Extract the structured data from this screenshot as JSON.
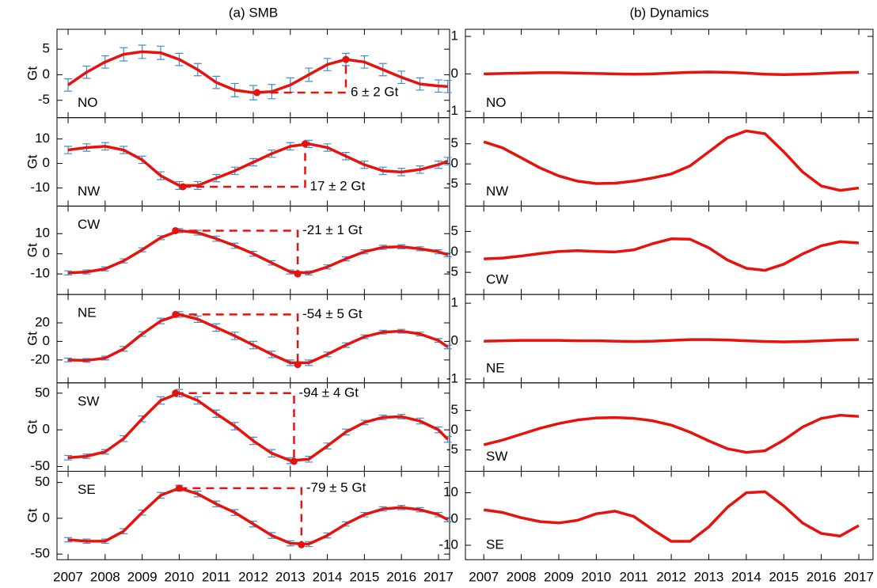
{
  "chart_data": [
    {
      "type": "line",
      "title": "(a) SMB",
      "ylabel": "Gt",
      "label": "NO",
      "label_corner": "lower left",
      "color": "#e8120c",
      "error_color": "#3b8fd1",
      "x": [
        2007,
        2007.5,
        2008,
        2008.5,
        2009,
        2009.5,
        2010,
        2010.5,
        2011,
        2011.5,
        2012,
        2012.5,
        2013,
        2013.5,
        2014,
        2014.5,
        2015,
        2015.5,
        2016,
        2016.5,
        2017,
        2017.25
      ],
      "values": [
        -2,
        0.5,
        2.5,
        4,
        4.5,
        4.3,
        3,
        1,
        -1.5,
        -3,
        -3.5,
        -3.3,
        -2,
        0,
        2,
        3,
        2.5,
        1,
        -0.5,
        -1.8,
        -2.2,
        -2.3
      ],
      "errors": [
        1.2,
        1.2,
        1.2,
        1.3,
        1.3,
        1.3,
        1.2,
        1.2,
        1.2,
        1.3,
        1.4,
        1.4,
        1.4,
        1.3,
        1.2,
        1.2,
        1.2,
        1.2,
        1.2,
        1.2,
        1.2,
        1.2
      ],
      "annotation": {
        "text": "6 ± 2 Gt",
        "x": [
          2012.1,
          2014.5
        ],
        "y": [
          -3.5,
          3
        ]
      },
      "xlim": [
        2006.7,
        2017.3
      ],
      "xticks": [
        2007,
        2008,
        2009,
        2010,
        2011,
        2012,
        2013,
        2014,
        2015,
        2016,
        2017
      ],
      "show_xtick_labels": false,
      "ylim": [
        -8.4,
        8.9
      ],
      "yticks": [
        -5,
        0,
        5
      ]
    },
    {
      "type": "line",
      "ylabel": "Gt",
      "label": "NW",
      "label_corner": "lower left",
      "color": "#e8120c",
      "error_color": "#3b8fd1",
      "x": [
        2007,
        2007.5,
        2008,
        2008.5,
        2009,
        2009.5,
        2010,
        2010.5,
        2011,
        2011.5,
        2012,
        2012.5,
        2013,
        2013.5,
        2014,
        2014.5,
        2015,
        2015.5,
        2016,
        2016.5,
        2017,
        2017.25
      ],
      "values": [
        5.5,
        6.5,
        7,
        5.5,
        1.5,
        -5,
        -9,
        -9,
        -6,
        -3,
        0.5,
        4,
        7,
        8,
        6.5,
        3,
        -0.5,
        -3,
        -3.5,
        -2.5,
        -0.5,
        1
      ],
      "errors": [
        1.5,
        1.5,
        1.5,
        1.5,
        1.5,
        1.6,
        1.6,
        1.6,
        1.5,
        1.5,
        1.5,
        1.5,
        1.5,
        1.5,
        1.5,
        1.5,
        1.5,
        1.5,
        1.5,
        1.5,
        1.5,
        1.5
      ],
      "annotation": {
        "text": "17 ± 2 Gt",
        "x": [
          2010.1,
          2013.4
        ],
        "y": [
          -9.5,
          8
        ]
      },
      "xlim": [
        2006.7,
        2017.3
      ],
      "xticks": [
        2007,
        2008,
        2009,
        2010,
        2011,
        2012,
        2013,
        2014,
        2015,
        2016,
        2017
      ],
      "show_xtick_labels": false,
      "ylim": [
        -17.4,
        18.7
      ],
      "yticks": [
        -10,
        0,
        10
      ]
    },
    {
      "type": "line",
      "ylabel": "Gt",
      "label": "CW",
      "label_corner": "upper left",
      "color": "#e8120c",
      "error_color": "#3b8fd1",
      "x": [
        2007,
        2007.5,
        2008,
        2008.5,
        2009,
        2009.5,
        2010,
        2010.5,
        2011,
        2011.5,
        2012,
        2012.5,
        2013,
        2013.5,
        2014,
        2014.5,
        2015,
        2015.5,
        2016,
        2016.5,
        2017,
        2017.25
      ],
      "values": [
        -9.5,
        -9,
        -7.5,
        -3.5,
        2,
        8,
        11.5,
        10.5,
        7.5,
        4,
        0,
        -4.5,
        -9,
        -9.5,
        -6.5,
        -2.5,
        1,
        3.2,
        3.5,
        2.5,
        1,
        -0.5
      ],
      "errors": [
        1,
        1,
        1,
        1,
        1,
        1,
        1,
        1.2,
        1.3,
        1.3,
        1.2,
        1.1,
        1,
        1,
        1,
        1,
        1,
        1,
        1,
        1,
        1,
        1
      ],
      "annotation": {
        "text": "-21 ± 1 Gt",
        "x": [
          2009.9,
          2013.2
        ],
        "y": [
          11.5,
          -10
        ]
      },
      "xlim": [
        2006.7,
        2017.3
      ],
      "xticks": [
        2007,
        2008,
        2009,
        2010,
        2011,
        2012,
        2013,
        2014,
        2015,
        2016,
        2017
      ],
      "show_xtick_labels": false,
      "ylim": [
        -20.2,
        23.7
      ],
      "yticks": [
        -10,
        0,
        10
      ]
    },
    {
      "type": "line",
      "ylabel": "Gt",
      "label": "NE",
      "label_corner": "upper left",
      "color": "#e8120c",
      "error_color": "#3b8fd1",
      "x": [
        2007,
        2007.5,
        2008,
        2008.5,
        2009,
        2009.5,
        2010,
        2010.5,
        2011,
        2011.5,
        2012,
        2012.5,
        2013,
        2013.5,
        2014,
        2014.5,
        2015,
        2015.5,
        2016,
        2016.5,
        2017,
        2017.25
      ],
      "values": [
        -20,
        -20.5,
        -18,
        -8,
        8,
        22,
        29,
        24,
        15,
        6,
        -4,
        -14,
        -23,
        -23,
        -14,
        -4,
        5,
        10,
        11,
        8,
        1,
        -6
      ],
      "errors": [
        2,
        2,
        2,
        2.5,
        2.5,
        3,
        3,
        3.5,
        4,
        4,
        4,
        3.5,
        3,
        3,
        2.5,
        2.5,
        2,
        2,
        2,
        2,
        2,
        2
      ],
      "annotation": {
        "text": "-54 ± 5 Gt",
        "x": [
          2009.9,
          2013.2
        ],
        "y": [
          29,
          -25
        ]
      },
      "xlim": [
        2006.7,
        2017.3
      ],
      "xticks": [
        2007,
        2008,
        2009,
        2010,
        2011,
        2012,
        2013,
        2014,
        2015,
        2016,
        2017
      ],
      "show_xtick_labels": false,
      "ylim": [
        -44.7,
        50.6
      ],
      "yticks": [
        -20,
        0,
        20
      ]
    },
    {
      "type": "line",
      "ylabel": "Gt",
      "label": "SW",
      "label_corner": "upper left",
      "color": "#e8120c",
      "error_color": "#3b8fd1",
      "x": [
        2007,
        2007.5,
        2008,
        2008.5,
        2009,
        2009.5,
        2010,
        2010.5,
        2011,
        2011.5,
        2012,
        2012.5,
        2013,
        2013.5,
        2014,
        2014.5,
        2015,
        2015.5,
        2016,
        2016.5,
        2017,
        2017.25
      ],
      "values": [
        -38,
        -36,
        -30,
        -12,
        15,
        40,
        50,
        40,
        22,
        5,
        -15,
        -32,
        -42,
        -40,
        -22,
        -3,
        10,
        17,
        18,
        12,
        0,
        -13
      ],
      "errors": [
        3,
        3,
        3,
        4,
        4,
        5,
        5,
        5,
        5,
        5,
        5,
        5,
        4,
        4,
        4,
        4,
        3,
        3,
        3,
        4,
        4,
        4
      ],
      "annotation": {
        "text": "-94 ± 4 Gt",
        "x": [
          2009.9,
          2013.1
        ],
        "y": [
          50,
          -43
        ]
      },
      "xlim": [
        2006.7,
        2017.3
      ],
      "xticks": [
        2007,
        2008,
        2009,
        2010,
        2011,
        2012,
        2013,
        2014,
        2015,
        2016,
        2017
      ],
      "show_xtick_labels": false,
      "ylim": [
        -56.5,
        64
      ],
      "yticks": [
        -50,
        0,
        50
      ]
    },
    {
      "type": "line",
      "ylabel": "Gt",
      "label": "SE",
      "label_corner": "upper left",
      "color": "#e8120c",
      "error_color": "#3b8fd1",
      "x": [
        2007,
        2007.5,
        2008,
        2008.5,
        2009,
        2009.5,
        2010,
        2010.5,
        2011,
        2011.5,
        2012,
        2012.5,
        2013,
        2013.5,
        2014,
        2014.5,
        2015,
        2015.5,
        2016,
        2016.5,
        2017,
        2017.25
      ],
      "values": [
        -30,
        -32,
        -32,
        -18,
        8,
        32,
        42,
        34,
        20,
        8,
        -8,
        -24,
        -35,
        -36,
        -24,
        -8,
        5,
        13,
        15,
        12,
        5,
        -2
      ],
      "errors": [
        3,
        3,
        3,
        3.5,
        3.5,
        4,
        4,
        4,
        4,
        4,
        4,
        4,
        3.5,
        3.5,
        3.5,
        3,
        3,
        3,
        3,
        3,
        3,
        3
      ],
      "annotation": {
        "text": "-79 ± 5 Gt",
        "x": [
          2010,
          2013.3
        ],
        "y": [
          42,
          -37
        ]
      },
      "xlim": [
        2006.7,
        2017.3
      ],
      "xticks": [
        2007,
        2008,
        2009,
        2010,
        2011,
        2012,
        2013,
        2014,
        2015,
        2016,
        2017
      ],
      "show_xtick_labels": true,
      "ylim": [
        -57.8,
        65.6
      ],
      "yticks": [
        -50,
        0,
        50
      ]
    },
    {
      "type": "line",
      "title": "(b) Dynamics",
      "label": "NO",
      "label_corner": "lower left",
      "color": "#e8120c",
      "x": [
        2007,
        2007.5,
        2008,
        2008.5,
        2009,
        2009.5,
        2010,
        2010.5,
        2011,
        2011.5,
        2012,
        2012.5,
        2013,
        2013.5,
        2014,
        2014.5,
        2015,
        2015.5,
        2016,
        2016.5,
        2017
      ],
      "values": [
        0,
        0.01,
        0.02,
        0.03,
        0.03,
        0.02,
        0.01,
        0,
        -0.01,
        0,
        0.02,
        0.04,
        0.05,
        0.04,
        0.02,
        -0.01,
        -0.02,
        -0.01,
        0.01,
        0.03,
        0.04
      ],
      "xlim": [
        2006.51,
        2017.38
      ],
      "xticks": [
        2007,
        2008,
        2009,
        2010,
        2011,
        2012,
        2013,
        2014,
        2015,
        2016,
        2017
      ],
      "show_xtick_labels": false,
      "ylim": [
        -1.17,
        1.19
      ],
      "yticks": [
        -1,
        0,
        1
      ]
    },
    {
      "type": "line",
      "label": "NW",
      "label_corner": "lower left",
      "color": "#e8120c",
      "x": [
        2007,
        2007.5,
        2008,
        2008.5,
        2009,
        2009.5,
        2010,
        2010.5,
        2011,
        2011.5,
        2012,
        2012.5,
        2013,
        2013.5,
        2014,
        2014.5,
        2015,
        2015.5,
        2016,
        2016.5,
        2017
      ],
      "values": [
        5.5,
        4,
        1.5,
        -1,
        -3,
        -4.3,
        -4.9,
        -4.8,
        -4.3,
        -3.5,
        -2.5,
        -0.5,
        3,
        6.5,
        8.2,
        7.5,
        3,
        -2,
        -5.5,
        -6.6,
        -6
      ],
      "xlim": [
        2006.51,
        2017.38
      ],
      "xticks": [
        2007,
        2008,
        2009,
        2010,
        2011,
        2012,
        2013,
        2014,
        2015,
        2016,
        2017
      ],
      "show_xtick_labels": false,
      "ylim": [
        -10.5,
        11.5
      ],
      "yticks": [
        -5,
        0,
        5
      ]
    },
    {
      "type": "line",
      "label": "CW",
      "label_corner": "lower left",
      "color": "#e8120c",
      "x": [
        2007,
        2007.5,
        2008,
        2008.5,
        2009,
        2009.5,
        2010,
        2010.5,
        2011,
        2011.5,
        2012,
        2012.5,
        2013,
        2013.5,
        2014,
        2014.5,
        2015,
        2015.5,
        2016,
        2016.5,
        2017
      ],
      "values": [
        -1.7,
        -1.5,
        -1,
        -0.4,
        0.1,
        0.3,
        0.1,
        0,
        0.5,
        2,
        3.2,
        3.1,
        1,
        -2,
        -4,
        -4.5,
        -3,
        -0.5,
        1.5,
        2.5,
        2.2
      ],
      "xlim": [
        2006.51,
        2017.38
      ],
      "xticks": [
        2007,
        2008,
        2009,
        2010,
        2011,
        2012,
        2013,
        2014,
        2015,
        2016,
        2017
      ],
      "show_xtick_labels": false,
      "ylim": [
        -10.4,
        11.2
      ],
      "yticks": [
        -5,
        0,
        5
      ]
    },
    {
      "type": "line",
      "label": "NE",
      "label_corner": "lower left",
      "color": "#e8120c",
      "x": [
        2007,
        2007.5,
        2008,
        2008.5,
        2009,
        2009.5,
        2010,
        2010.5,
        2011,
        2011.5,
        2012,
        2012.5,
        2013,
        2013.5,
        2014,
        2014.5,
        2015,
        2015.5,
        2016,
        2016.5,
        2017
      ],
      "values": [
        0,
        0.01,
        0.02,
        0.02,
        0.02,
        0.01,
        0.01,
        0,
        -0.01,
        0,
        0.02,
        0.04,
        0.04,
        0.03,
        0.01,
        -0.01,
        -0.02,
        -0.01,
        0.01,
        0.03,
        0.04
      ],
      "xlim": [
        2006.51,
        2017.38
      ],
      "xticks": [
        2007,
        2008,
        2009,
        2010,
        2011,
        2012,
        2013,
        2014,
        2015,
        2016,
        2017
      ],
      "show_xtick_labels": false,
      "ylim": [
        -1.1,
        1.23
      ],
      "yticks": [
        -1,
        0,
        1
      ]
    },
    {
      "type": "line",
      "label": "SW",
      "label_corner": "lower left",
      "color": "#e8120c",
      "x": [
        2007,
        2007.5,
        2008,
        2008.5,
        2009,
        2009.5,
        2010,
        2010.5,
        2011,
        2011.5,
        2012,
        2012.5,
        2013,
        2013.5,
        2014,
        2014.5,
        2015,
        2015.5,
        2016,
        2016.5,
        2017
      ],
      "values": [
        -3.7,
        -2.5,
        -1,
        0.5,
        1.7,
        2.6,
        3.1,
        3.2,
        3,
        2.4,
        1.3,
        -0.5,
        -2.7,
        -4.7,
        -5.6,
        -5.2,
        -2.5,
        0.8,
        3,
        3.8,
        3.5
      ],
      "xlim": [
        2006.51,
        2017.38
      ],
      "xticks": [
        2007,
        2008,
        2009,
        2010,
        2011,
        2012,
        2013,
        2014,
        2015,
        2016,
        2017
      ],
      "show_xtick_labels": false,
      "ylim": [
        -10.4,
        12
      ],
      "yticks": [
        -5,
        0,
        5
      ]
    },
    {
      "type": "line",
      "label": "SE",
      "label_corner": "lower left",
      "color": "#e8120c",
      "x": [
        2007,
        2007.5,
        2008,
        2008.5,
        2009,
        2009.5,
        2010,
        2010.5,
        2011,
        2011.5,
        2012,
        2012.5,
        2013,
        2013.5,
        2014,
        2014.5,
        2015,
        2015.5,
        2016,
        2016.5,
        2017
      ],
      "values": [
        3.5,
        2.5,
        0.5,
        -1,
        -1.5,
        -0.5,
        2,
        3,
        1,
        -4,
        -8.5,
        -8.5,
        -3,
        4.5,
        10,
        10.4,
        5,
        -1.5,
        -5.5,
        -6.5,
        -2.5
      ],
      "xlim": [
        2006.51,
        2017.38
      ],
      "xticks": [
        2007,
        2008,
        2009,
        2010,
        2011,
        2012,
        2013,
        2014,
        2015,
        2016,
        2017
      ],
      "show_xtick_labels": true,
      "ylim": [
        -15.5,
        18.2
      ],
      "yticks": [
        -10,
        0,
        10
      ]
    }
  ]
}
